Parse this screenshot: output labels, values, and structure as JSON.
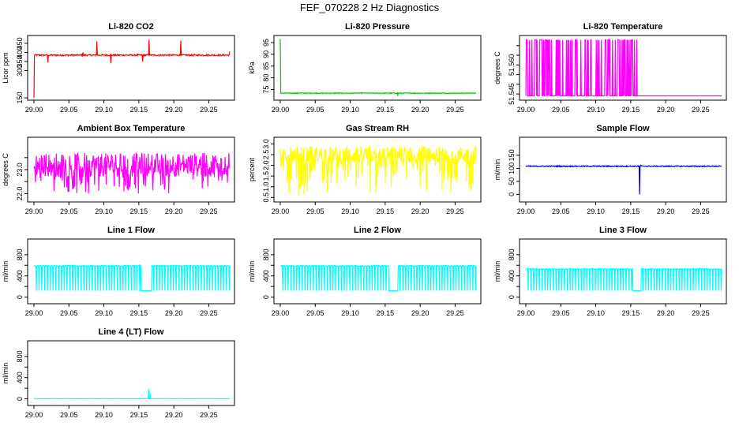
{
  "title": "FEF_070228  2 Hz Diagnostics",
  "chart_data": [
    {
      "type": "line",
      "title": "Li-820 CO2",
      "ylabel": "Licor ppm",
      "color": "#ff0000",
      "xlim": [
        29.0,
        29.28
      ],
      "ylim": [
        150,
        480
      ],
      "x_ticks": [
        "29.00",
        "29.05",
        "29.10",
        "29.15",
        "29.20",
        "29.25"
      ],
      "y_ticks": [
        150,
        300,
        350,
        400,
        450
      ],
      "y_tick_labels": [
        "150",
        "300",
        "350",
        "400",
        "450"
      ],
      "series": [
        {
          "name": "CO2",
          "baseline": 385,
          "noise": 4,
          "range": [
            150,
            480
          ],
          "spikes": [
            [
              29.0,
              150
            ],
            [
              29.0,
              455
            ],
            [
              29.02,
              345
            ],
            [
              29.07,
              400
            ],
            [
              29.09,
              460
            ],
            [
              29.11,
              340
            ],
            [
              29.155,
              350
            ],
            [
              29.165,
              470
            ],
            [
              29.21,
              465
            ],
            [
              29.28,
              405
            ]
          ]
        }
      ]
    },
    {
      "type": "line",
      "title": "Li-820 Pressure",
      "ylabel": "kPa",
      "color": "#00cc00",
      "xlim": [
        29.0,
        29.28
      ],
      "ylim": [
        71.5,
        97
      ],
      "x_ticks": [
        "29.00",
        "29.05",
        "29.10",
        "29.15",
        "29.20",
        "29.25"
      ],
      "y_ticks": [
        75,
        80,
        85,
        90,
        95
      ],
      "y_tick_labels": [
        "75",
        "80",
        "85",
        "90",
        "95"
      ],
      "series": [
        {
          "name": "Pressure",
          "baseline": 73.5,
          "noise": 0.15,
          "range": [
            71.5,
            97
          ],
          "spikes": [
            [
              29.0,
              96.5
            ],
            [
              29.168,
              72.3
            ]
          ]
        }
      ]
    },
    {
      "type": "line",
      "title": "Li-820 Temperature",
      "ylabel": "degrees C",
      "color": "#ff00ff",
      "xlim": [
        29.0,
        29.28
      ],
      "ylim": [
        51.543,
        51.574
      ],
      "x_ticks": [
        "29.00",
        "29.05",
        "29.10",
        "29.15",
        "29.20",
        "29.25"
      ],
      "y_ticks": [
        51.545,
        51.55,
        51.555,
        51.56,
        51.565,
        51.57
      ],
      "y_tick_labels": [
        "51.545",
        "",
        "",
        "51.560",
        "",
        ""
      ],
      "series": [
        {
          "name": "Temperature",
          "low": 51.544,
          "high": 51.573,
          "switch_until": 29.163
        }
      ]
    },
    {
      "type": "line",
      "title": "Ambient Box Temperature",
      "ylabel": "degrees C",
      "color": "#ff00ff",
      "xlim": [
        29.0,
        29.28
      ],
      "ylim": [
        21.75,
        24.25
      ],
      "x_ticks": [
        "29.00",
        "29.05",
        "29.10",
        "29.15",
        "29.20",
        "29.25"
      ],
      "y_ticks": [
        22.0,
        22.5,
        23.0,
        23.5
      ],
      "y_tick_labels": [
        "22.0",
        "",
        "23.0",
        ""
      ],
      "series": [
        {
          "name": "Box Temp",
          "baseline": 23.2,
          "noise": 0.5,
          "range": [
            21.8,
            24.2
          ]
        }
      ]
    },
    {
      "type": "line",
      "title": "Gas Stream RH",
      "ylabel": "percent",
      "color": "#ffff00",
      "xlim": [
        29.0,
        29.28
      ],
      "ylim": [
        0.4,
        3.2
      ],
      "x_ticks": [
        "29.00",
        "29.05",
        "29.10",
        "29.15",
        "29.20",
        "29.25"
      ],
      "y_ticks": [
        0.5,
        1.0,
        1.5,
        2.0,
        2.5,
        3.0
      ],
      "y_tick_labels": [
        "0.5",
        "1.0",
        "1.5",
        "2.0",
        "2.5",
        "3.0"
      ],
      "series": [
        {
          "name": "RH",
          "baseline": 2.5,
          "noise": 0.4,
          "range": [
            0.5,
            3.1
          ]
        }
      ]
    },
    {
      "type": "line",
      "title": "Sample Flow",
      "ylabel": "ml/min",
      "color": "#0000cc",
      "xlim": [
        29.0,
        29.28
      ],
      "ylim": [
        -20,
        210
      ],
      "x_ticks": [
        "29.00",
        "29.05",
        "29.10",
        "29.15",
        "29.20",
        "29.25"
      ],
      "y_ticks": [
        0,
        50,
        100,
        150
      ],
      "y_tick_labels": [
        "0",
        "50",
        "100",
        "150"
      ],
      "series": [
        {
          "name": "Sample Flow",
          "baseline": 108,
          "noise": 2,
          "range": [
            -20,
            210
          ],
          "spikes": [
            [
              29.163,
              0
            ],
            [
              29.165,
              112
            ]
          ]
        }
      ]
    },
    {
      "type": "line",
      "title": "Line 1 Flow",
      "ylabel": "ml/min",
      "color": "#00ffff",
      "xlim": [
        29.0,
        29.28
      ],
      "ylim": [
        -80,
        1050
      ],
      "x_ticks": [
        "29.00",
        "29.05",
        "29.10",
        "29.15",
        "29.20",
        "29.25"
      ],
      "y_ticks": [
        0,
        200,
        400,
        600,
        800
      ],
      "y_tick_labels": [
        "0",
        "",
        "400",
        "",
        "800"
      ],
      "series": [
        {
          "name": "Line 1",
          "high": 590,
          "low": 120,
          "gap": [
            29.153,
            29.168
          ]
        }
      ]
    },
    {
      "type": "line",
      "title": "Line 2 Flow",
      "ylabel": "ml/min",
      "color": "#00ffff",
      "xlim": [
        29.0,
        29.28
      ],
      "ylim": [
        -80,
        1050
      ],
      "x_ticks": [
        "29.00",
        "29.05",
        "29.10",
        "29.15",
        "29.20",
        "29.25"
      ],
      "y_ticks": [
        0,
        200,
        400,
        600,
        800
      ],
      "y_tick_labels": [
        "0",
        "",
        "400",
        "",
        "800"
      ],
      "series": [
        {
          "name": "Line 2",
          "high": 590,
          "low": 120,
          "gap": [
            29.155,
            29.168
          ]
        }
      ]
    },
    {
      "type": "line",
      "title": "Line 3 Flow",
      "ylabel": "ml/min",
      "color": "#00ffff",
      "xlim": [
        29.0,
        29.28
      ],
      "ylim": [
        -80,
        1050
      ],
      "x_ticks": [
        "29.00",
        "29.05",
        "29.10",
        "29.15",
        "29.20",
        "29.25"
      ],
      "y_ticks": [
        0,
        200,
        400,
        600,
        800
      ],
      "y_tick_labels": [
        "0",
        "",
        "400",
        "",
        "800"
      ],
      "series": [
        {
          "name": "Line 3",
          "high": 530,
          "low": 120,
          "gap": [
            29.153,
            29.165
          ]
        }
      ]
    },
    {
      "type": "line",
      "title": "Line 4 (LT) Flow",
      "ylabel": "ml/min",
      "color": "#00ffff",
      "xlim": [
        29.0,
        29.28
      ],
      "ylim": [
        -80,
        1050
      ],
      "x_ticks": [
        "29.00",
        "29.05",
        "29.10",
        "29.15",
        "29.20",
        "29.25"
      ],
      "y_ticks": [
        0,
        200,
        400,
        600,
        800
      ],
      "y_tick_labels": [
        "0",
        "",
        "400",
        "",
        "800"
      ],
      "series": [
        {
          "name": "Line 4",
          "baseline": 5,
          "noise": 1,
          "range": [
            -80,
            1050
          ],
          "spikes": [
            [
              29.164,
              190
            ],
            [
              29.166,
              120
            ]
          ]
        }
      ]
    }
  ]
}
